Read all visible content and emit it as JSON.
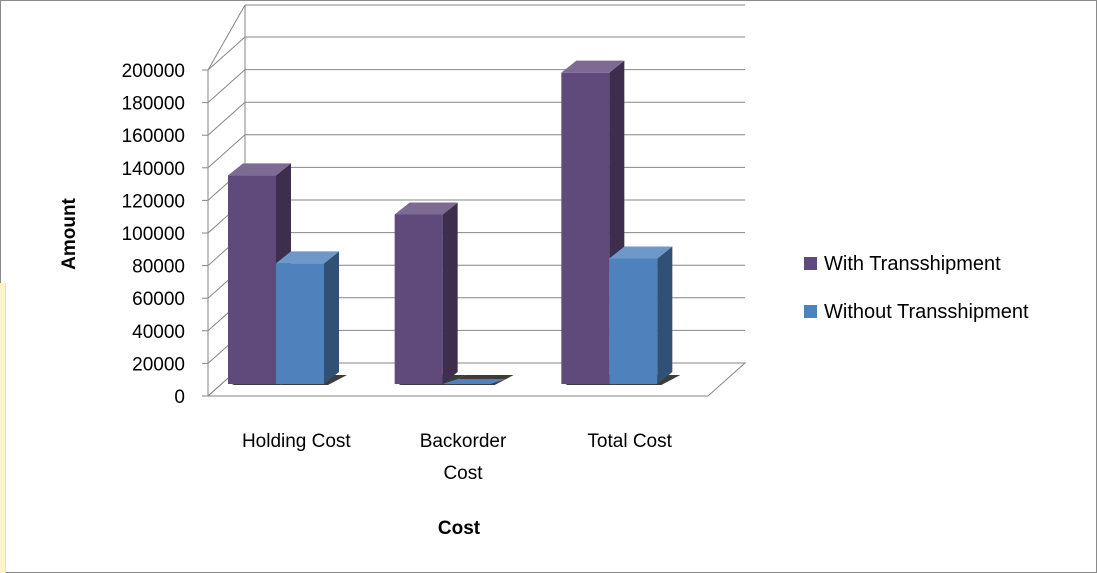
{
  "chart_data": {
    "type": "bar",
    "style": "3d-clustered-column",
    "categories": [
      "Holding Cost",
      "Backorder Cost",
      "Total Cost"
    ],
    "category_lines": [
      [
        "Holding Cost"
      ],
      [
        "Backorder",
        "Cost"
      ],
      [
        "Total Cost"
      ]
    ],
    "series": [
      {
        "name": "With Transshipment",
        "values": [
          128000,
          104000,
          191000
        ],
        "color": "#604a7b"
      },
      {
        "name": "Without Transshipment",
        "values": [
          74000,
          0,
          77000
        ],
        "color": "#4f81bd"
      }
    ],
    "xlabel": "Cost",
    "ylabel": "Amount",
    "ylim": [
      0,
      200000
    ],
    "yticks": [
      0,
      20000,
      40000,
      60000,
      80000,
      100000,
      120000,
      140000,
      160000,
      180000,
      200000
    ],
    "grid": true,
    "legend": "right"
  }
}
